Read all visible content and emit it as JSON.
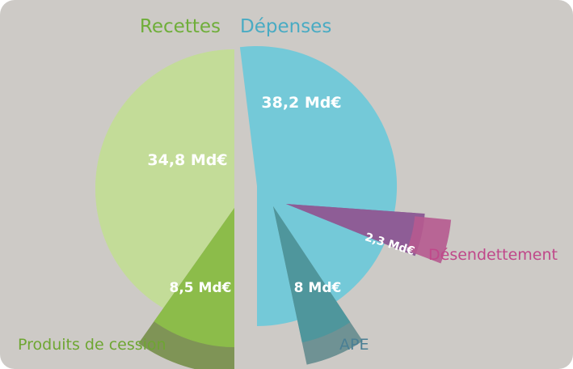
{
  "chart_data": {
    "type": "pie",
    "groups": [
      {
        "name": "Recettes",
        "color": "#6fae3a"
      },
      {
        "name": "Dépenses",
        "color": "#49abc3"
      }
    ],
    "slices": [
      {
        "group": "Recettes",
        "value": 34.8,
        "value_label": "34,8 Md€",
        "color": "#c3dc98"
      },
      {
        "group": "Recettes",
        "name": "Produits de cession",
        "value": 8.5,
        "value_label": "8,5 Md€",
        "color": "#8dbe4a",
        "overlay_color": "#7f9456"
      },
      {
        "group": "Dépenses",
        "value": 38.2,
        "value_label": "38,2 Md€",
        "color": "#74c9d8"
      },
      {
        "group": "Dépenses",
        "name": "APE",
        "value": 8,
        "value_label": "8 Md€",
        "color": "#4d979c",
        "overlay_color": "#6f9294"
      },
      {
        "group": "Dépenses",
        "name": "Désendettement",
        "value": 2.3,
        "value_label": "2,3 Md€",
        "color": "#b65a8f",
        "wedge_color": "#8e5d96"
      }
    ],
    "colors": {
      "background": "#cdcac6",
      "value_text": "#ffffff",
      "produits_label": "#6ea632",
      "ape_label": "#4a7f94",
      "desendettement_label": "#c0488a"
    }
  }
}
